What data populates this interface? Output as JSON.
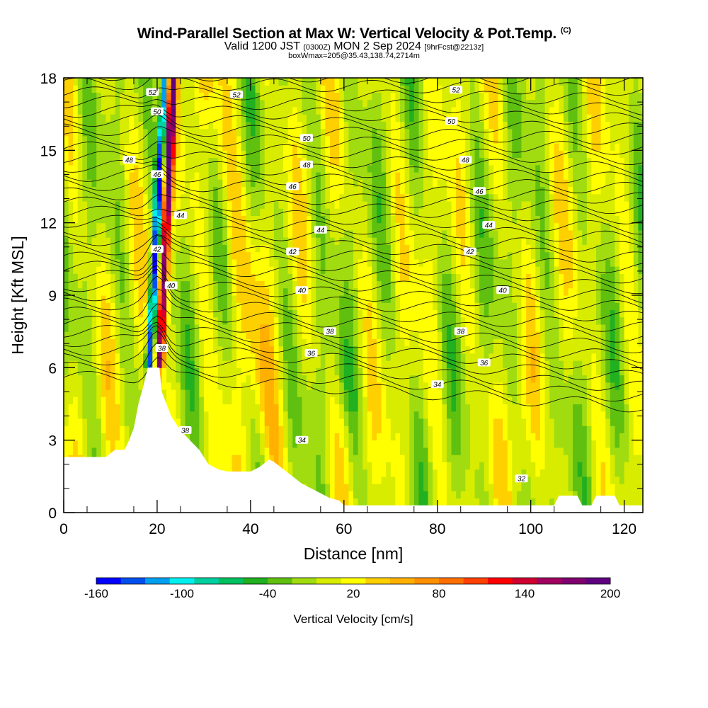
{
  "header": {
    "title": "Wind-Parallel Section at Max W: Vertical Velocity & Pot.Temp.",
    "title_tag": "(C)",
    "subtitle_a": "Valid 1200 JST",
    "subtitle_b": "(0300Z)",
    "subtitle_c": "MON 2 Sep 2024",
    "subtitle_d": "[9hrFcst@2213z]",
    "subsub": "boxWmax=205@35.43,138.74,2714m"
  },
  "chart_data": {
    "type": "heatmap",
    "xlabel": "Distance [nm]",
    "ylabel": "Height [Kft MSL]",
    "xlim": [
      0,
      124
    ],
    "ylim": [
      0,
      18
    ],
    "xticks": [
      "0",
      "20",
      "40",
      "60",
      "80",
      "100",
      "120"
    ],
    "yticks": [
      "0",
      "3",
      "6",
      "9",
      "12",
      "15",
      "18"
    ],
    "colorbar": {
      "label": "Vertical Velocity [cm/s]",
      "ticks": [
        "-160",
        "-100",
        "-40",
        "20",
        "80",
        "140",
        "200"
      ],
      "min": -160,
      "max": 200,
      "colors": [
        "#0000ff",
        "#0050f0",
        "#00a0f0",
        "#00f0f0",
        "#00d0a0",
        "#00c060",
        "#20b020",
        "#60c010",
        "#a0dc10",
        "#d8ec00",
        "#ffff00",
        "#ffd000",
        "#ffb000",
        "#ff9000",
        "#ff7000",
        "#ff4000",
        "#ff0000",
        "#d00030",
        "#a00060",
        "#800070",
        "#600080"
      ]
    },
    "contour_labels": [
      {
        "x": 37,
        "y": 17.3,
        "text": "52"
      },
      {
        "x": 84,
        "y": 17.5,
        "text": "52"
      },
      {
        "x": 52,
        "y": 15.5,
        "text": "50"
      },
      {
        "x": 83,
        "y": 16.2,
        "text": "50"
      },
      {
        "x": 14,
        "y": 14.6,
        "text": "48"
      },
      {
        "x": 52,
        "y": 14.4,
        "text": "48"
      },
      {
        "x": 86,
        "y": 14.6,
        "text": "48"
      },
      {
        "x": 49,
        "y": 13.5,
        "text": "46"
      },
      {
        "x": 89,
        "y": 13.3,
        "text": "46"
      },
      {
        "x": 25,
        "y": 12.3,
        "text": "44"
      },
      {
        "x": 55,
        "y": 11.7,
        "text": "44"
      },
      {
        "x": 91,
        "y": 11.9,
        "text": "44"
      },
      {
        "x": 49,
        "y": 10.8,
        "text": "42"
      },
      {
        "x": 87,
        "y": 10.8,
        "text": "42"
      },
      {
        "x": 23,
        "y": 9.4,
        "text": "40"
      },
      {
        "x": 51,
        "y": 9.2,
        "text": "40"
      },
      {
        "x": 94,
        "y": 9.2,
        "text": "40"
      },
      {
        "x": 57,
        "y": 7.5,
        "text": "38"
      },
      {
        "x": 85,
        "y": 7.5,
        "text": "38"
      },
      {
        "x": 53,
        "y": 6.6,
        "text": "36"
      },
      {
        "x": 90,
        "y": 6.2,
        "text": "36"
      },
      {
        "x": 80,
        "y": 5.3,
        "text": "34"
      },
      {
        "x": 21,
        "y": 6.8,
        "text": "38"
      },
      {
        "x": 26,
        "y": 3.4,
        "text": "38"
      },
      {
        "x": 51,
        "y": 3.0,
        "text": "34"
      },
      {
        "x": 98,
        "y": 1.4,
        "text": "32"
      },
      {
        "x": 20,
        "y": 10.9,
        "text": "42"
      },
      {
        "x": 20,
        "y": 14.0,
        "text": "46"
      },
      {
        "x": 20,
        "y": 16.6,
        "text": "50"
      },
      {
        "x": 19,
        "y": 17.4,
        "text": "52"
      }
    ]
  }
}
